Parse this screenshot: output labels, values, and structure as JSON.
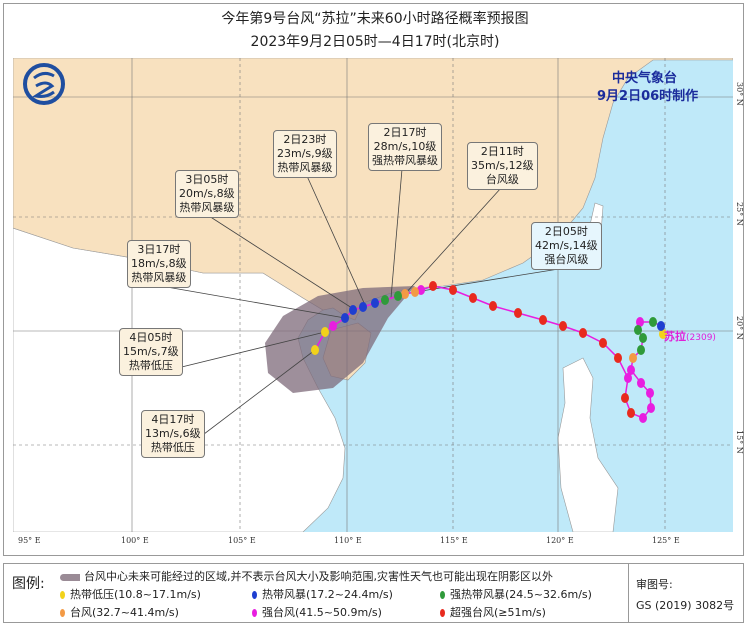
{
  "title": "今年第9号台风“苏拉”未来60小时路径概率预报图",
  "subtitle": "2023年9月2日05时—4日17时(北京时)",
  "issuer": {
    "name": "中央气象台",
    "issued": "9月2日06时制作"
  },
  "storm": {
    "name": "苏拉",
    "code": "(2309)"
  },
  "lon_ticks": [
    "95° E",
    "100° E",
    "105° E",
    "110° E",
    "115° E",
    "120° E",
    "125° E"
  ],
  "lat_ticks": [
    "30° N",
    "25° N",
    "20° N",
    "15° N"
  ],
  "forecasts": [
    {
      "time": "2日05时",
      "wind": "42m/s,14级",
      "grade": "强台风级"
    },
    {
      "time": "2日11时",
      "wind": "35m/s,12级",
      "grade": "台风级"
    },
    {
      "time": "2日17时",
      "wind": "28m/s,10级",
      "grade": "强热带风暴级"
    },
    {
      "time": "2日23时",
      "wind": "23m/s,9级",
      "grade": "热带风暴级"
    },
    {
      "time": "3日05时",
      "wind": "20m/s,8级",
      "grade": "热带风暴级"
    },
    {
      "time": "3日17时",
      "wind": "18m/s,8级",
      "grade": "热带风暴级"
    },
    {
      "time": "4日05时",
      "wind": "15m/s,7级",
      "grade": "热带低压"
    },
    {
      "time": "4日17时",
      "wind": "13m/s,6级",
      "grade": "热带低压"
    }
  ],
  "legend": {
    "label": "图例:",
    "cone": "台风中心未来可能经过的区域,并不表示台风大小及影响范围,灾害性天气也可能出现在阴影区以外",
    "items": [
      {
        "label": "热带低压(10.8~17.1m/s)",
        "color": "#f2d21a"
      },
      {
        "label": "热带风暴(17.2~24.4m/s)",
        "color": "#1f3fd0"
      },
      {
        "label": "强热带风暴(24.5~32.6m/s)",
        "color": "#2f9a3a"
      },
      {
        "label": "台风(32.7~41.4m/s)",
        "color": "#f39a45"
      },
      {
        "label": "强台风(41.5~50.9m/s)",
        "color": "#e81ee0"
      },
      {
        "label": "超强台风(≥51m/s)",
        "color": "#e82a1e"
      }
    ],
    "approval_label": "审图号:",
    "approval_no": "GS (2019) 3082号"
  },
  "colors": {
    "sea": "#bfe9f9",
    "china": "#f8e1bf",
    "other_land": "#ffffff",
    "cone": "#7e6a7a"
  }
}
